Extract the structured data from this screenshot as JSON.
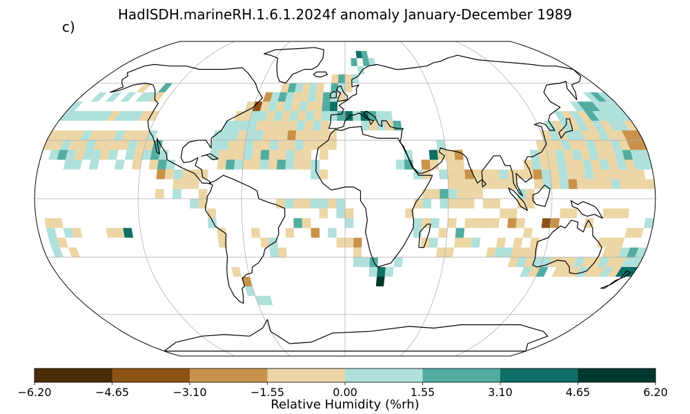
{
  "title": "HadISDH.marineRH.1.6.1.2024f anomaly January-December 1989",
  "panel_label": "c)",
  "projection": "Robinson",
  "colorbar": {
    "label": "Relative Humidity (%rh)",
    "ticks": [
      "−6.20",
      "−4.65",
      "−3.10",
      "−1.55",
      "0.00",
      "1.55",
      "3.10",
      "4.65",
      "6.20"
    ],
    "colors": [
      "#4a2c07",
      "#8c5214",
      "#c8924a",
      "#ecd6a6",
      "#b0e0da",
      "#52aca0",
      "#0e6f66",
      "#00382e"
    ]
  },
  "colors": {
    "land_outline": "#000000",
    "gridlines": "#b0b0b0"
  }
}
